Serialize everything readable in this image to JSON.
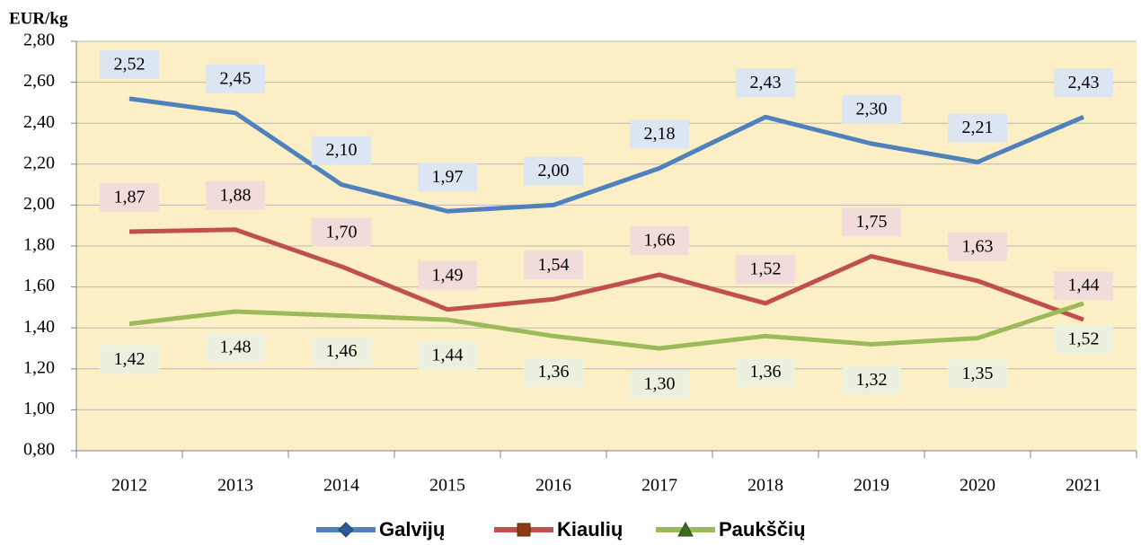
{
  "chart_data": {
    "type": "line",
    "y_label": "EUR/kg",
    "categories": [
      "2012",
      "2013",
      "2014",
      "2015",
      "2016",
      "2017",
      "2018",
      "2019",
      "2020",
      "2021"
    ],
    "series": [
      {
        "name": "Galvijų",
        "color": "#4f81bd",
        "label_bg": "#dce6f2",
        "marker": "diamond",
        "values": [
          2.52,
          2.45,
          2.1,
          1.97,
          2.0,
          2.18,
          2.43,
          2.3,
          2.21,
          2.43
        ],
        "value_labels": [
          "2,52",
          "2,45",
          "2,10",
          "1,97",
          "2,00",
          "2,18",
          "2,43",
          "2,30",
          "2,21",
          "2,43"
        ]
      },
      {
        "name": "Kiaulių",
        "color": "#c0504d",
        "label_bg": "#f2dcdb",
        "marker": "square",
        "values": [
          1.87,
          1.88,
          1.7,
          1.49,
          1.54,
          1.66,
          1.52,
          1.75,
          1.63,
          1.44
        ],
        "value_labels": [
          "1,87",
          "1,88",
          "1,70",
          "1,49",
          "1,54",
          "1,66",
          "1,52",
          "1,75",
          "1,63",
          "1,44"
        ]
      },
      {
        "name": "Paukščių",
        "color": "#9bbb59",
        "label_bg": "#ebf1de",
        "marker": "triangle",
        "values": [
          1.42,
          1.48,
          1.46,
          1.44,
          1.36,
          1.3,
          1.36,
          1.32,
          1.35,
          1.52
        ],
        "value_labels": [
          "1,42",
          "1,48",
          "1,46",
          "1,44",
          "1,36",
          "1,30",
          "1,36",
          "1,32",
          "1,35",
          "1,52"
        ]
      }
    ],
    "ylim": [
      0.8,
      2.8
    ],
    "yticks": [
      {
        "value": 0.8,
        "label": "0,80"
      },
      {
        "value": 1.0,
        "label": "1,00"
      },
      {
        "value": 1.2,
        "label": "1,20"
      },
      {
        "value": 1.4,
        "label": "1,40"
      },
      {
        "value": 1.6,
        "label": "1,60"
      },
      {
        "value": 1.8,
        "label": "1,80"
      },
      {
        "value": 2.0,
        "label": "2,00"
      },
      {
        "value": 2.2,
        "label": "2,20"
      },
      {
        "value": 2.4,
        "label": "2,40"
      },
      {
        "value": 2.6,
        "label": "2,60"
      },
      {
        "value": 2.8,
        "label": "2,80"
      }
    ],
    "grid": true,
    "plot_background": "#fcefc5",
    "legend": "bottom"
  }
}
